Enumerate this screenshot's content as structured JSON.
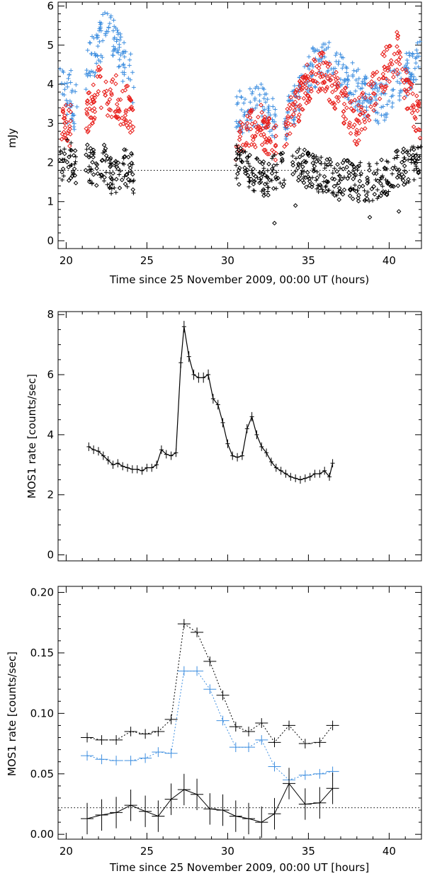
{
  "chart_data": [
    {
      "type": "scatter",
      "ylabel": "mJy",
      "xlabel": "Time since 25 November 2009, 00:00 UT (hours)",
      "xlim": [
        19.5,
        42
      ],
      "ylim": [
        -0.2,
        6.1
      ],
      "xticks": [
        "20",
        "25",
        "30",
        "35",
        "40"
      ],
      "yticks": [
        "0",
        "1",
        "2",
        "3",
        "4",
        "5",
        "6"
      ],
      "reference_line": 1.8,
      "colors": {
        "blue": "#3f8fe0",
        "red": "#e8201c",
        "black": "#000000"
      },
      "series": [
        {
          "marker": "plus",
          "color": "blue",
          "segments": [
            {
              "x": [
                19.6,
                19.7,
                19.8,
                19.9,
                20.0,
                20.1,
                20.2,
                20.3,
                20.4,
                20.5,
                20.6,
                20.7
              ],
              "y": [
                4.4,
                4.1,
                3.9,
                4.2,
                3.6,
                3.5,
                3.9,
                3.8,
                3.4,
                3.2,
                3.6,
                3.4
              ]
            },
            {
              "x": [
                21.2,
                21.4,
                21.6,
                21.8,
                22.0,
                22.2,
                22.4,
                22.6,
                22.8,
                23.0,
                23.2,
                23.4,
                23.6,
                23.8,
                24.0,
                24.2
              ],
              "y": [
                4.0,
                4.5,
                4.8,
                4.7,
                5.0,
                5.2,
                5.35,
                5.5,
                5.3,
                5.05,
                4.9,
                4.7,
                4.5,
                4.45,
                4.3,
                3.9
              ]
            },
            {
              "x": [
                30.5,
                31.0,
                31.5,
                32.0,
                32.5,
                33.0
              ],
              "y": [
                3.3,
                3.3,
                3.4,
                3.5,
                3.3,
                3.0
              ]
            },
            {
              "x": [
                33.5,
                34.0,
                34.5,
                35.0,
                35.5,
                36.0,
                36.5,
                37.0,
                37.5,
                38.0,
                38.5,
                39.0,
                39.5,
                40.0,
                40.5,
                41.0,
                41.5,
                42.0
              ],
              "y": [
                3.0,
                3.4,
                3.9,
                4.3,
                4.5,
                4.6,
                4.5,
                4.3,
                4.1,
                3.9,
                3.7,
                3.6,
                3.5,
                3.8,
                4.1,
                4.2,
                4.5,
                4.6
              ]
            }
          ]
        },
        {
          "marker": "diamond",
          "color": "red",
          "segments": [
            {
              "x": [
                19.6,
                19.7,
                19.8,
                19.9,
                20.0,
                20.1,
                20.2,
                20.3
              ],
              "y": [
                3.3,
                3.0,
                3.05,
                2.95,
                3.1,
                3.0,
                2.9,
                3.0
              ]
            },
            {
              "x": [
                21.2,
                21.4,
                21.6,
                21.8,
                22.0,
                22.2,
                22.4,
                22.6,
                22.8,
                23.0,
                23.2,
                23.4,
                23.6,
                23.8,
                24.0,
                24.2
              ],
              "y": [
                3.2,
                3.3,
                3.5,
                3.7,
                3.9,
                3.9,
                3.8,
                3.7,
                3.6,
                3.8,
                3.6,
                3.4,
                3.3,
                3.5,
                3.2,
                3.0
              ]
            },
            {
              "x": [
                30.5,
                31.0,
                31.5,
                32.0,
                32.5,
                33.0
              ],
              "y": [
                2.6,
                2.7,
                2.9,
                3.0,
                2.7,
                2.6
              ]
            },
            {
              "x": [
                33.5,
                34.0,
                34.5,
                35.0,
                35.5,
                36.0,
                36.5,
                37.0,
                37.5,
                38.0,
                38.5,
                39.0,
                39.5,
                40.0,
                40.5,
                41.0,
                41.5,
                42.0
              ],
              "y": [
                2.8,
                3.2,
                3.7,
                4.0,
                4.3,
                4.3,
                4.0,
                3.6,
                3.2,
                3.0,
                3.4,
                3.8,
                4.2,
                4.6,
                4.8,
                4.0,
                3.4,
                3.0
              ]
            }
          ]
        },
        {
          "marker": "mixed",
          "color": "black",
          "segments": [
            {
              "x": [
                19.6,
                19.8,
                20.0,
                20.2,
                20.4,
                20.6
              ],
              "y": [
                2.1,
                2.0,
                2.2,
                2.0,
                2.1,
                1.9
              ]
            },
            {
              "x": [
                21.2,
                21.5,
                21.8,
                22.1,
                22.4,
                22.7,
                23.0,
                23.3,
                23.6,
                23.9,
                24.2
              ],
              "y": [
                2.0,
                1.9,
                1.8,
                1.9,
                2.0,
                1.6,
                1.7,
                1.5,
                1.9,
                1.8,
                1.7
              ]
            },
            {
              "x": [
                30.5,
                31.0,
                31.5,
                32.0,
                32.5,
                33.0,
                33.5
              ],
              "y": [
                2.0,
                1.8,
                1.7,
                1.6,
                1.5,
                1.8,
                1.9
              ]
            },
            {
              "x": [
                34.0,
                35.0,
                36.0,
                37.0,
                38.0,
                39.0,
                40.0,
                41.0,
                42.0
              ],
              "y": [
                2.0,
                1.8,
                1.6,
                1.6,
                1.5,
                1.5,
                1.7,
                1.9,
                2.1
              ]
            }
          ]
        }
      ]
    },
    {
      "type": "line",
      "ylabel": "MOS1 rate [counts/sec]",
      "xlim": [
        19.5,
        42
      ],
      "ylim": [
        -0.2,
        8.1
      ],
      "yticks": [
        "0",
        "2",
        "4",
        "6",
        "8"
      ],
      "series": [
        {
          "color": "black",
          "x": [
            21.4,
            21.7,
            22.0,
            22.3,
            22.6,
            22.9,
            23.2,
            23.5,
            23.8,
            24.1,
            24.4,
            24.7,
            25.0,
            25.3,
            25.6,
            25.9,
            26.2,
            26.5,
            26.8,
            27.1,
            27.3,
            27.6,
            27.9,
            28.2,
            28.5,
            28.8,
            29.1,
            29.4,
            29.7,
            30.0,
            30.3,
            30.6,
            30.9,
            31.2,
            31.5,
            31.8,
            32.1,
            32.4,
            32.7,
            33.0,
            33.3,
            33.6,
            33.9,
            34.2,
            34.5,
            34.8,
            35.1,
            35.4,
            35.7,
            36.0,
            36.3,
            36.5
          ],
          "y": [
            3.6,
            3.5,
            3.45,
            3.3,
            3.15,
            3.0,
            3.05,
            2.95,
            2.9,
            2.85,
            2.85,
            2.8,
            2.9,
            2.9,
            3.0,
            3.5,
            3.35,
            3.3,
            3.4,
            6.4,
            7.6,
            6.6,
            6.0,
            5.9,
            5.9,
            6.0,
            5.2,
            5.0,
            4.4,
            3.7,
            3.3,
            3.25,
            3.3,
            4.2,
            4.6,
            4.0,
            3.6,
            3.4,
            3.1,
            2.9,
            2.8,
            2.7,
            2.6,
            2.55,
            2.5,
            2.55,
            2.6,
            2.7,
            2.7,
            2.8,
            2.6,
            3.05
          ]
        }
      ]
    },
    {
      "type": "line",
      "ylabel": "MOS1 rate [counts/sec]",
      "xlabel": "Time since 25 November 2009, 00:00 UT [hours]",
      "xlim": [
        19.5,
        42
      ],
      "ylim": [
        -0.004,
        0.205
      ],
      "xticks": [
        "20",
        "25",
        "30",
        "35",
        "40"
      ],
      "yticks": [
        "0.00",
        "0.05",
        "0.10",
        "0.15",
        "0.20"
      ],
      "reference_line": 0.022,
      "series": [
        {
          "color": "black",
          "style": "dotted",
          "x": [
            21.3,
            22.2,
            23.1,
            24.0,
            24.9,
            25.7,
            26.5,
            27.3,
            28.1,
            28.9,
            29.7,
            30.5,
            31.3,
            32.1,
            32.9,
            33.8,
            34.8,
            35.7,
            36.5
          ],
          "y": [
            0.08,
            0.078,
            0.078,
            0.085,
            0.083,
            0.085,
            0.095,
            0.174,
            0.167,
            0.143,
            0.115,
            0.089,
            0.085,
            0.092,
            0.076,
            0.09,
            0.075,
            0.076,
            0.09
          ]
        },
        {
          "color": "blue",
          "style": "dotted",
          "x": [
            21.3,
            22.2,
            23.1,
            24.0,
            24.9,
            25.7,
            26.5,
            27.3,
            28.1,
            28.9,
            29.7,
            30.5,
            31.3,
            32.1,
            32.9,
            33.8,
            34.8,
            35.7,
            36.5
          ],
          "y": [
            0.065,
            0.062,
            0.061,
            0.061,
            0.063,
            0.068,
            0.067,
            0.135,
            0.135,
            0.12,
            0.094,
            0.072,
            0.072,
            0.078,
            0.056,
            0.045,
            0.049,
            0.05,
            0.052
          ]
        },
        {
          "color": "black",
          "style": "solid",
          "x": [
            21.3,
            22.2,
            23.1,
            24.0,
            24.9,
            25.7,
            26.5,
            27.3,
            28.1,
            28.9,
            29.7,
            30.5,
            31.3,
            32.1,
            32.9,
            33.8,
            34.8,
            35.7,
            36.5
          ],
          "y": [
            0.013,
            0.016,
            0.018,
            0.024,
            0.019,
            0.015,
            0.029,
            0.037,
            0.033,
            0.021,
            0.02,
            0.015,
            0.013,
            0.01,
            0.017,
            0.042,
            0.025,
            0.026,
            0.038
          ]
        }
      ]
    }
  ]
}
